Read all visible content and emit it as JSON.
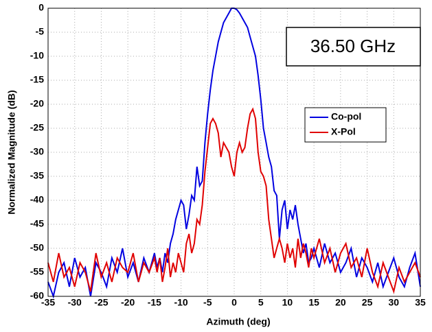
{
  "chart_data": {
    "type": "line",
    "xlabel": "Azimuth (deg)",
    "ylabel": "Normalized Magnitude (dB)",
    "annotation": "36.50 GHz",
    "xlim": [
      -35,
      35
    ],
    "ylim": [
      -60,
      0
    ],
    "xticks": [
      -35,
      -30,
      -25,
      -20,
      -15,
      -10,
      -5,
      0,
      5,
      10,
      15,
      20,
      25,
      30,
      35
    ],
    "yticks": [
      -60,
      -55,
      -50,
      -45,
      -40,
      -35,
      -30,
      -25,
      -20,
      -15,
      -10,
      -5,
      0
    ],
    "grid": true,
    "x": [
      -35,
      -34,
      -33,
      -32,
      -31,
      -30,
      -29,
      -28,
      -27,
      -26,
      -25,
      -24,
      -23,
      -22,
      -21,
      -20,
      -19,
      -18,
      -17,
      -16,
      -15,
      -14.5,
      -14,
      -13.5,
      -13,
      -12.5,
      -12,
      -11.5,
      -11,
      -10.5,
      -10,
      -9.5,
      -9,
      -8.5,
      -8,
      -7.5,
      -7,
      -6.5,
      -6,
      -5.5,
      -5,
      -4.5,
      -4,
      -3.5,
      -3,
      -2.5,
      -2,
      -1.5,
      -1,
      -0.5,
      0,
      0.5,
      1,
      1.5,
      2,
      2.5,
      3,
      3.5,
      4,
      4.5,
      5,
      5.5,
      6,
      6.5,
      7,
      7.5,
      8,
      8.5,
      9,
      9.5,
      10,
      10.5,
      11,
      11.5,
      12,
      12.5,
      13,
      13.5,
      14,
      14.5,
      15,
      16,
      17,
      18,
      19,
      20,
      21,
      22,
      23,
      24,
      25,
      26,
      27,
      28,
      29,
      30,
      31,
      32,
      33,
      34,
      35
    ],
    "series": [
      {
        "name": "Co-pol",
        "color": "#0000e0",
        "values": [
          -57,
          -60,
          -55,
          -53,
          -58,
          -52,
          -56,
          -54,
          -60,
          -53,
          -55,
          -58,
          -52,
          -55,
          -50,
          -56,
          -53,
          -57,
          -52,
          -55,
          -51,
          -54,
          -52,
          -55,
          -51,
          -53,
          -49,
          -47,
          -44,
          -42,
          -40,
          -41,
          -46,
          -43,
          -39,
          -40,
          -33,
          -37,
          -36,
          -28,
          -22,
          -17,
          -13,
          -10,
          -7,
          -5,
          -3,
          -2,
          -1,
          0,
          0,
          -0.3,
          -1,
          -2,
          -3,
          -4,
          -6,
          -8,
          -10,
          -14,
          -19,
          -25,
          -28,
          -31,
          -33,
          -38,
          -39,
          -48,
          -42,
          -40,
          -46,
          -42,
          -44,
          -41,
          -45,
          -48,
          -51,
          -49,
          -53,
          -52,
          -50,
          -54,
          -49,
          -53,
          -51,
          -55,
          -53,
          -50,
          -56,
          -52,
          -54,
          -57,
          -53,
          -58,
          -55,
          -52,
          -56,
          -58,
          -54,
          -51,
          -58
        ]
      },
      {
        "name": "X-Pol",
        "color": "#e00000",
        "values": [
          -53,
          -57,
          -51,
          -56,
          -54,
          -58,
          -53,
          -55,
          -59,
          -51,
          -56,
          -53,
          -57,
          -52,
          -54,
          -55,
          -51,
          -57,
          -53,
          -55,
          -52,
          -55,
          -52,
          -57,
          -54,
          -50,
          -56,
          -53,
          -55,
          -51,
          -53,
          -55,
          -49,
          -47,
          -51,
          -49,
          -44,
          -45,
          -41,
          -34,
          -29,
          -24,
          -23,
          -24,
          -26,
          -31,
          -28,
          -29,
          -30,
          -33,
          -35,
          -30,
          -28,
          -30,
          -29,
          -25,
          -22,
          -21,
          -23,
          -30,
          -34,
          -35,
          -37,
          -44,
          -48,
          -52,
          -50,
          -48,
          -50,
          -53,
          -49,
          -52,
          -50,
          -54,
          -48,
          -52,
          -49,
          -51,
          -54,
          -50,
          -52,
          -48,
          -53,
          -50,
          -55,
          -51,
          -49,
          -54,
          -52,
          -56,
          -50,
          -55,
          -58,
          -53,
          -56,
          -59,
          -54,
          -57,
          -55,
          -53,
          -56
        ]
      }
    ]
  }
}
